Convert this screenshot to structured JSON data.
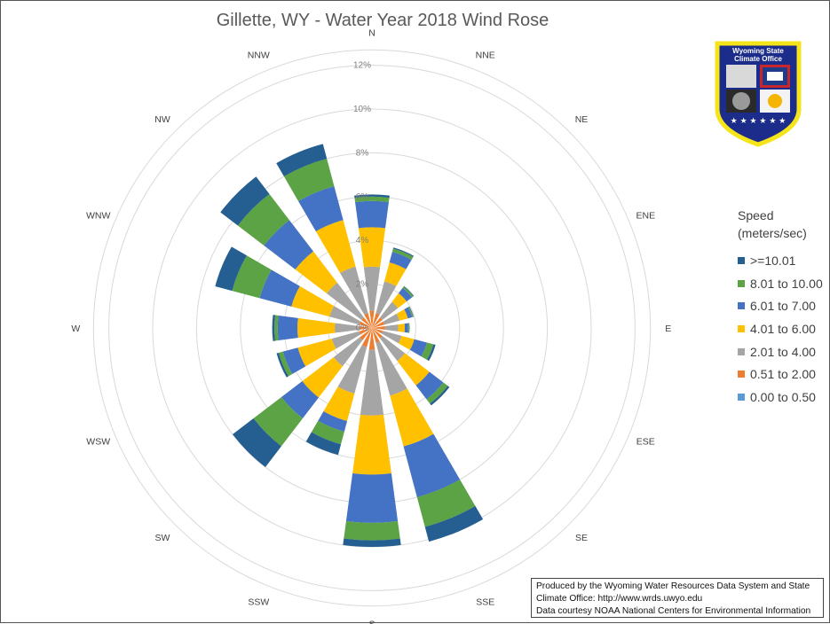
{
  "title": "Gillette, WY - Water Year 2018 Wind Rose",
  "legend": {
    "title_line1": "Speed",
    "title_line2": "(meters/sec)",
    "items": [
      {
        "label": ">=10.01",
        "color": "#255E91"
      },
      {
        "label": "8.01 to 10.00",
        "color": "#5BA345"
      },
      {
        "label": "6.01 to 7.00",
        "color": "#4472C4"
      },
      {
        "label": "4.01 to 6.00",
        "color": "#FFC000"
      },
      {
        "label": "2.01 to 4.00",
        "color": "#A5A5A5"
      },
      {
        "label": "0.51 to 2.00",
        "color": "#ED7D31"
      },
      {
        "label": "0.00 to 0.50",
        "color": "#5B9BD5"
      }
    ]
  },
  "logo": {
    "line1": "Wyoming State",
    "line2": "Climate Office",
    "colors": {
      "border": "#F5E41A",
      "fill": "#1B2C8A",
      "stars": "#FFFFFF"
    }
  },
  "credit": {
    "line1": "Produced by the Wyoming Water Resources Data System and State",
    "line2": "Climate Office: http://www.wrds.uwyo.edu",
    "line3": "Data courtesy NOAA National Centers for Environmental Information"
  },
  "chart_data": {
    "type": "radar-stacked",
    "title": "Gillette, WY - Water Year 2018 Wind Rose",
    "directions": [
      "N",
      "NNE",
      "NE",
      "ENE",
      "E",
      "ESE",
      "SE",
      "SSE",
      "S",
      "SSW",
      "SW",
      "WSW",
      "W",
      "WNW",
      "NW",
      "NNW"
    ],
    "rlim": [
      0,
      12
    ],
    "r_ticks": [
      "0%",
      "2%",
      "4%",
      "6%",
      "8%",
      "10%",
      "12%"
    ],
    "r_tick_values": [
      0,
      2,
      4,
      6,
      8,
      10,
      12
    ],
    "grid": true,
    "legend_position": "right",
    "series": [
      {
        "name": "0.00 to 0.50",
        "color": "#5B9BD5",
        "values": [
          0,
          0,
          0,
          0,
          0,
          0,
          0,
          0,
          0,
          0,
          0,
          0,
          0,
          0,
          0,
          0
        ]
      },
      {
        "name": "0.51 to 2.00",
        "color": "#ED7D31",
        "values": [
          0.8,
          0.7,
          0.6,
          0.6,
          0.6,
          0.5,
          0.6,
          0.7,
          1.0,
          0.9,
          0.7,
          0.6,
          0.6,
          0.6,
          0.6,
          0.7
        ]
      },
      {
        "name": "2.01 to 4.00",
        "color": "#A5A5A5",
        "values": [
          2.0,
          1.5,
          0.9,
          0.7,
          0.6,
          0.9,
          1.3,
          2.5,
          3.0,
          2.2,
          1.5,
          1.3,
          1.1,
          1.4,
          2.0,
          2.2
        ]
      },
      {
        "name": "4.01 to 6.00",
        "color": "#FFC000",
        "values": [
          1.8,
          0.9,
          0.5,
          0.4,
          0.3,
          0.6,
          1.4,
          2.4,
          2.7,
          1.3,
          1.8,
          1.6,
          1.7,
          1.8,
          1.8,
          2.2
        ]
      },
      {
        "name": "6.01 to 7.00",
        "color": "#4472C4",
        "values": [
          1.2,
          0.5,
          0.3,
          0.2,
          0.15,
          0.6,
          0.8,
          2.4,
          2.2,
          0.5,
          1.2,
          0.7,
          0.9,
          1.5,
          1.8,
          1.6
        ]
      },
      {
        "name": "8.01 to 10.00",
        "color": "#5BA345",
        "values": [
          0.2,
          0.15,
          0.08,
          0.05,
          0.05,
          0.3,
          0.25,
          1.4,
          0.8,
          0.6,
          1.6,
          0.2,
          0.15,
          1.3,
          1.5,
          1.3
        ]
      },
      {
        "name": ">=10.01",
        "color": "#255E91",
        "values": [
          0.1,
          0.05,
          0.03,
          0.02,
          0.02,
          0.1,
          0.1,
          0.7,
          0.3,
          0.5,
          1.2,
          0.1,
          0.1,
          0.8,
          1.0,
          0.7
        ]
      }
    ]
  }
}
